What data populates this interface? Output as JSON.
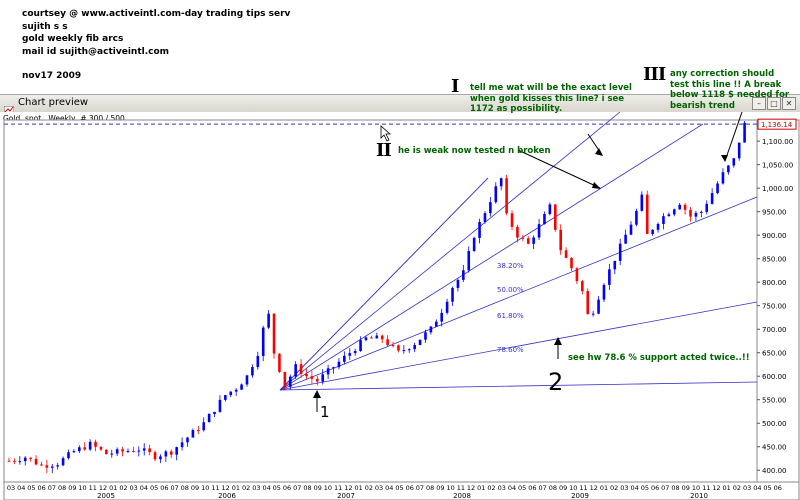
{
  "header": {
    "lines": [
      "courtsey @ www.activeintl.com-day trading tips serv",
      "sujith s s",
      "gold weekly fib arcs",
      "mail id sujith@activeintl.com"
    ],
    "date": "nov17 2009"
  },
  "window": {
    "title": "Chart preview",
    "subtitle": "Gold, spot , Weekly, # 300 / 500"
  },
  "annotations": {
    "i_text": "tell me wat will be the exact level when gold kisses this line? i see 1172 as possibility.",
    "i_label": "I",
    "ii_text": "he is weak now tested n broken",
    "ii_label": "II",
    "iii_text": "any correction should test this line  !! A break below 1118 $ needed for bearish trend",
    "iii_label": "III",
    "support_text": "see hw 78.6 % support acted twice..!!",
    "mark1": "1",
    "mark2": "2"
  },
  "fib_labels": [
    "38.20%",
    "50.00%",
    "61.80%",
    "78.60%"
  ],
  "price_tag": "1,136.14",
  "colors": {
    "up": "#0000ff",
    "down": "#ff0000",
    "arc": "#3333cc",
    "annotation": "#006400"
  },
  "chart_data": {
    "type": "candlestick",
    "title": "Gold, spot , Weekly, # 300 / 500",
    "y_ticks": [
      "1,100.00",
      "1,050.00",
      "1,000.00",
      "950.00",
      "900.00",
      "850.00",
      "800.00",
      "750.00",
      "700.00",
      "650.00",
      "600.00",
      "550.00",
      "500.00",
      "450.00",
      "400.00"
    ],
    "ylim": [
      375,
      1145
    ],
    "years": [
      "2005",
      "2006",
      "2007",
      "2008",
      "2009",
      "2010"
    ],
    "months": [
      "03",
      "04",
      "05",
      "06",
      "07",
      "08",
      "09",
      "10",
      "11",
      "12",
      "01",
      "02",
      "03",
      "04",
      "05",
      "06",
      "07",
      "08",
      "09",
      "10",
      "11",
      "12",
      "01",
      "02",
      "03",
      "04",
      "05",
      "06",
      "07",
      "08",
      "09",
      "10",
      "11",
      "12",
      "01",
      "02",
      "03",
      "04",
      "05",
      "06",
      "07",
      "08",
      "09",
      "10",
      "11",
      "12",
      "01",
      "02",
      "03",
      "04",
      "05",
      "06",
      "07",
      "08",
      "09",
      "10",
      "11",
      "12",
      "01",
      "02",
      "03",
      "04",
      "05",
      "06",
      "07",
      "08",
      "09",
      "10",
      "11",
      "12",
      "01",
      "02",
      "03",
      "04",
      "05",
      "06"
    ],
    "last_price": 1136.14,
    "resistance_line": 1136.14,
    "price_path": [
      [
        0,
        420
      ],
      [
        3,
        428
      ],
      [
        6,
        410
      ],
      [
        9,
        415
      ],
      [
        12,
        440
      ],
      [
        15,
        455
      ],
      [
        18,
        435
      ],
      [
        21,
        440
      ],
      [
        24,
        445
      ],
      [
        27,
        430
      ],
      [
        30,
        440
      ],
      [
        33,
        470
      ],
      [
        36,
        500
      ],
      [
        38,
        530
      ],
      [
        40,
        560
      ],
      [
        42,
        575
      ],
      [
        44,
        600
      ],
      [
        46,
        650
      ],
      [
        47,
        700
      ],
      [
        48,
        730
      ],
      [
        49,
        650
      ],
      [
        51,
        580
      ],
      [
        53,
        620
      ],
      [
        55,
        600
      ],
      [
        57,
        590
      ],
      [
        60,
        620
      ],
      [
        63,
        650
      ],
      [
        66,
        680
      ],
      [
        69,
        680
      ],
      [
        72,
        650
      ],
      [
        75,
        670
      ],
      [
        78,
        700
      ],
      [
        80,
        740
      ],
      [
        82,
        790
      ],
      [
        84,
        820
      ],
      [
        86,
        900
      ],
      [
        88,
        950
      ],
      [
        90,
        1000
      ],
      [
        91,
        1020
      ],
      [
        92,
        940
      ],
      [
        94,
        900
      ],
      [
        96,
        880
      ],
      [
        98,
        920
      ],
      [
        100,
        960
      ],
      [
        102,
        870
      ],
      [
        104,
        830
      ],
      [
        106,
        780
      ],
      [
        107,
        730
      ],
      [
        108,
        740
      ],
      [
        110,
        800
      ],
      [
        112,
        850
      ],
      [
        114,
        900
      ],
      [
        116,
        950
      ],
      [
        117,
        980
      ],
      [
        118,
        900
      ],
      [
        120,
        930
      ],
      [
        122,
        950
      ],
      [
        124,
        970
      ],
      [
        126,
        940
      ],
      [
        128,
        950
      ],
      [
        130,
        990
      ],
      [
        132,
        1030
      ],
      [
        134,
        1060
      ],
      [
        135,
        1100
      ],
      [
        136,
        1136
      ]
    ]
  }
}
